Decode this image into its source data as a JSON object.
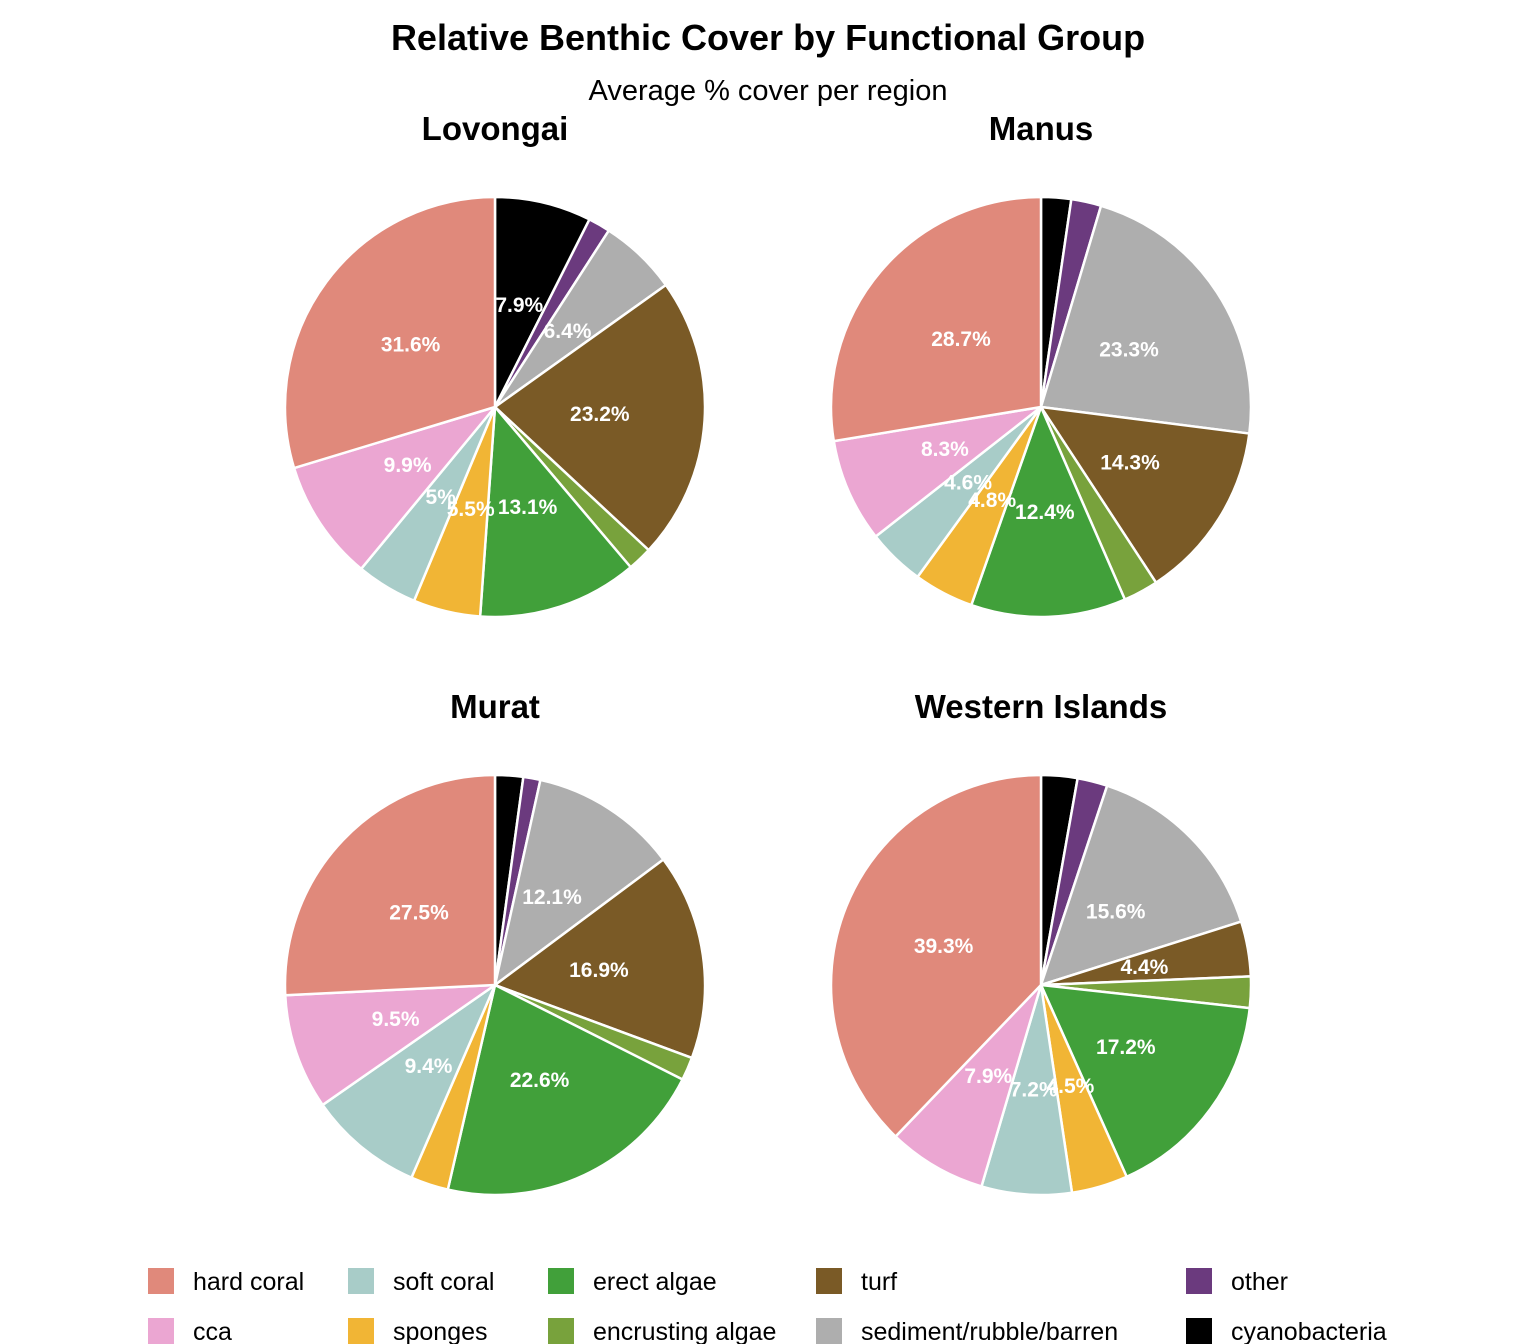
{
  "chart_data": {
    "type": "pie",
    "title": "Relative Benthic Cover by Functional Group",
    "subtitle": "Average % cover per region",
    "categories": [
      "hard coral",
      "cca",
      "soft coral",
      "sponges",
      "erect algae",
      "encrusting algae",
      "turf",
      "sediment/rubble/barren",
      "other",
      "cyanobacteria"
    ],
    "colors": {
      "hard coral": "#E0897B",
      "cca": "#EBA6D2",
      "soft coral": "#A8CCC8",
      "sponges": "#F1B535",
      "erect algae": "#41A03A",
      "encrusting algae": "#78A23C",
      "turf": "#7A5A26",
      "sediment/rubble/barren": "#AEAEAE",
      "other": "#6B3A7E",
      "cyanobacteria": "#000000"
    },
    "legend_order": [
      "hard coral",
      "cca",
      "soft coral",
      "sponges",
      "erect algae",
      "encrusting algae",
      "turf",
      "sediment/rubble/barren",
      "other",
      "cyanobacteria"
    ],
    "legend_position": "bottom",
    "slice_order_clockwise_from_top": [
      "cyanobacteria",
      "other",
      "sediment/rubble/barren",
      "turf",
      "encrusting algae",
      "erect algae",
      "sponges",
      "soft coral",
      "cca",
      "hard coral"
    ],
    "panels": [
      {
        "title": "Lovongai",
        "values": {
          "hard coral": 31.6,
          "cca": 9.9,
          "soft coral": 5.0,
          "sponges": 5.5,
          "erect algae": 13.1,
          "encrusting algae": 2.0,
          "turf": 23.2,
          "sediment/rubble/barren": 6.4,
          "other": 1.8,
          "cyanobacteria": 7.9
        },
        "labels": {
          "hard coral": "31.6%",
          "cca": "9.9%",
          "soft coral": "5%",
          "sponges": "5.5%",
          "erect algae": "13.1%",
          "turf": "23.2%",
          "sediment/rubble/barren": "6.4%",
          "cyanobacteria": "7.9%"
        }
      },
      {
        "title": "Manus",
        "values": {
          "hard coral": 28.7,
          "cca": 8.3,
          "soft coral": 4.6,
          "sponges": 4.8,
          "erect algae": 12.4,
          "encrusting algae": 2.8,
          "turf": 14.3,
          "sediment/rubble/barren": 23.3,
          "other": 2.4,
          "cyanobacteria": 2.4
        },
        "labels": {
          "hard coral": "28.7%",
          "cca": "8.3%",
          "soft coral": "4.6%",
          "sponges": "4.8%",
          "erect algae": "12.4%",
          "turf": "14.3%",
          "sediment/rubble/barren": "23.3%"
        }
      },
      {
        "title": "Murat",
        "values": {
          "hard coral": 27.5,
          "cca": 9.5,
          "soft coral": 9.4,
          "sponges": 3.1,
          "erect algae": 22.6,
          "encrusting algae": 1.9,
          "turf": 16.9,
          "sediment/rubble/barren": 12.1,
          "other": 1.4,
          "cyanobacteria": 2.3
        },
        "labels": {
          "hard coral": "27.5%",
          "cca": "9.5%",
          "soft coral": "9.4%",
          "erect algae": "22.6%",
          "turf": "16.9%",
          "sediment/rubble/barren": "12.1%"
        }
      },
      {
        "title": "Western Islands",
        "values": {
          "hard coral": 39.3,
          "cca": 7.9,
          "soft coral": 7.2,
          "sponges": 4.5,
          "erect algae": 17.2,
          "encrusting algae": 2.5,
          "turf": 4.4,
          "sediment/rubble/barren": 15.6,
          "other": 2.4,
          "cyanobacteria": 2.9
        },
        "labels": {
          "hard coral": "39.3%",
          "cca": "7.9%",
          "soft coral": "7.2%",
          "sponges": "4.5%",
          "erect algae": "17.2%",
          "turf": "4.4%",
          "sediment/rubble/barren": "15.6%"
        }
      }
    ]
  }
}
